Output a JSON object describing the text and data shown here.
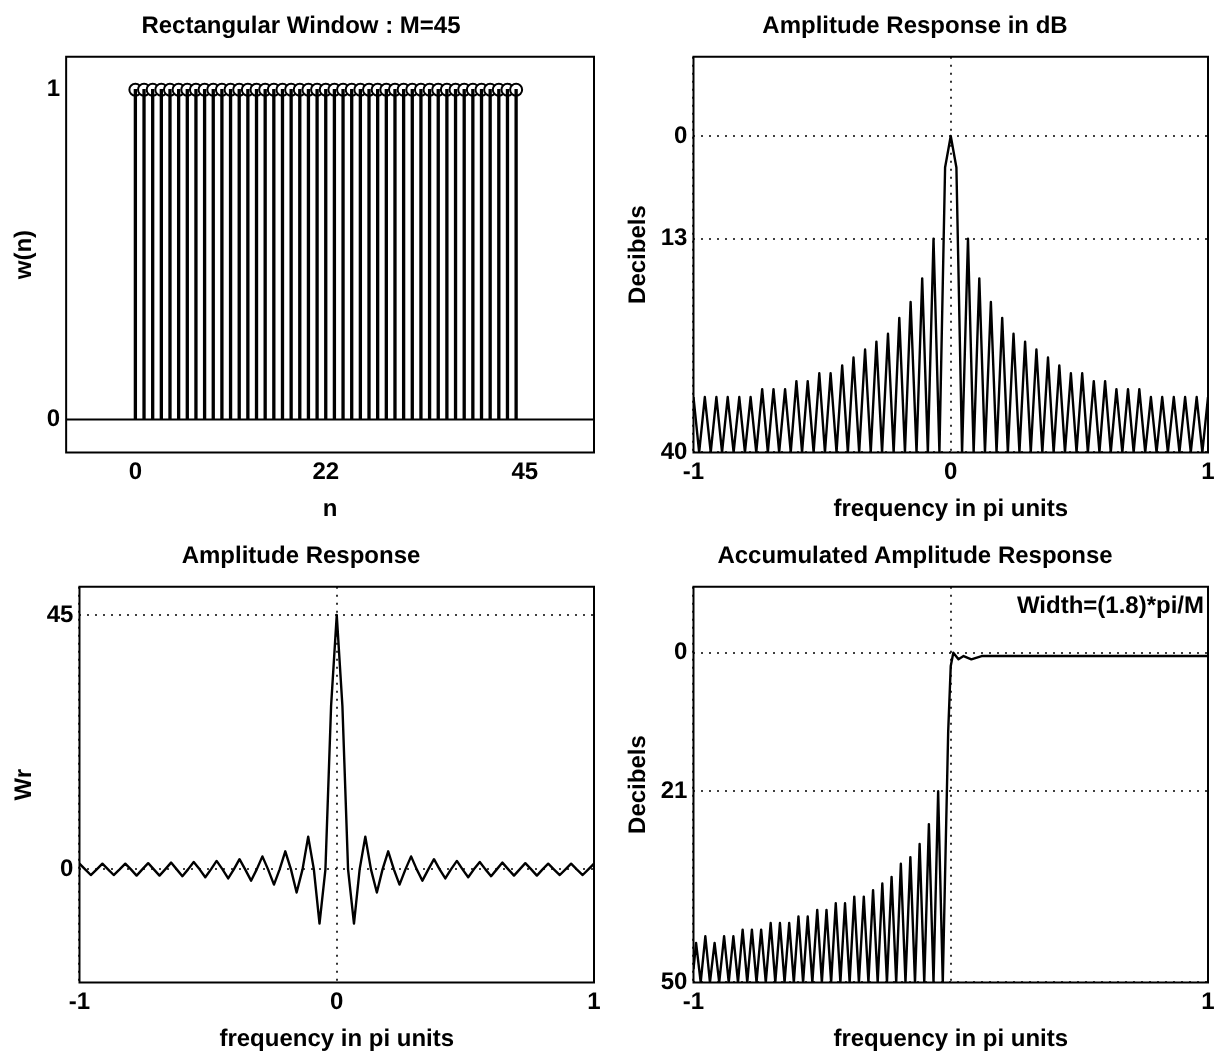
{
  "chart_data": [
    {
      "type": "lollipop",
      "title": "Rectangular Window : M=45",
      "xlabel": "n",
      "ylabel": "w(n)",
      "marker": "circle",
      "x": [
        0,
        1,
        2,
        3,
        4,
        5,
        6,
        7,
        8,
        9,
        10,
        11,
        12,
        13,
        14,
        15,
        16,
        17,
        18,
        19,
        20,
        21,
        22,
        23,
        24,
        25,
        26,
        27,
        28,
        29,
        30,
        31,
        32,
        33,
        34,
        35,
        36,
        37,
        38,
        39,
        40,
        41,
        42,
        43,
        44
      ],
      "series": [
        {
          "color": "#000000",
          "values": [
            1,
            1,
            1,
            1,
            1,
            1,
            1,
            1,
            1,
            1,
            1,
            1,
            1,
            1,
            1,
            1,
            1,
            1,
            1,
            1,
            1,
            1,
            1,
            1,
            1,
            1,
            1,
            1,
            1,
            1,
            1,
            1,
            1,
            1,
            1,
            1,
            1,
            1,
            1,
            1,
            1,
            1,
            1,
            1,
            1
          ]
        }
      ],
      "xlim": [
        -8,
        53
      ],
      "xticks": [
        0,
        22,
        45
      ],
      "ylim": [
        -0.1,
        1.1
      ],
      "yticks": [
        0,
        1
      ],
      "ref_lines": [
        {
          "axis": "y",
          "value": 0,
          "color": "#000000"
        }
      ]
    },
    {
      "type": "line",
      "title": "Amplitude Response in dB",
      "xlabel": "frequency in pi units",
      "ylabel": "Decibels",
      "grid": true,
      "marker": "none",
      "x": [
        -1,
        -0.978,
        -0.956,
        -0.933,
        -0.911,
        -0.889,
        -0.867,
        -0.844,
        -0.822,
        -0.8,
        -0.778,
        -0.756,
        -0.733,
        -0.711,
        -0.689,
        -0.667,
        -0.644,
        -0.622,
        -0.6,
        -0.578,
        -0.556,
        -0.533,
        -0.511,
        -0.489,
        -0.467,
        -0.444,
        -0.422,
        -0.4,
        -0.378,
        -0.356,
        -0.333,
        -0.311,
        -0.289,
        -0.267,
        -0.244,
        -0.222,
        -0.2,
        -0.178,
        -0.156,
        -0.133,
        -0.111,
        -0.089,
        -0.067,
        -0.044,
        -0.022,
        0,
        0.022,
        0.044,
        0.067,
        0.089,
        0.111,
        0.133,
        0.156,
        0.178,
        0.2,
        0.222,
        0.244,
        0.267,
        0.289,
        0.311,
        0.333,
        0.356,
        0.378,
        0.4,
        0.422,
        0.444,
        0.467,
        0.489,
        0.511,
        0.533,
        0.556,
        0.578,
        0.6,
        0.622,
        0.644,
        0.667,
        0.689,
        0.711,
        0.733,
        0.756,
        0.778,
        0.8,
        0.822,
        0.844,
        0.867,
        0.889,
        0.911,
        0.933,
        0.956,
        0.978,
        1
      ],
      "series": [
        {
          "color": "#000000",
          "values": [
            33,
            40,
            33,
            40,
            33,
            40,
            33,
            40,
            33,
            40,
            33,
            40,
            32,
            40,
            32,
            40,
            32,
            40,
            31,
            40,
            31,
            40,
            30,
            40,
            30,
            40,
            29,
            40,
            28,
            40,
            27,
            40,
            26,
            40,
            25,
            40,
            23,
            40,
            21,
            40,
            18,
            40,
            13,
            40,
            4,
            0,
            4,
            40,
            13,
            40,
            18,
            40,
            21,
            40,
            23,
            40,
            25,
            40,
            26,
            40,
            27,
            40,
            28,
            40,
            29,
            40,
            30,
            40,
            30,
            40,
            31,
            40,
            31,
            40,
            32,
            40,
            32,
            40,
            32,
            40,
            33,
            40,
            33,
            40,
            33,
            40,
            33,
            40,
            33,
            40,
            33
          ]
        }
      ],
      "xlim": [
        -1,
        1
      ],
      "xticks": [
        -1,
        0,
        1
      ],
      "ylim": [
        40,
        -10
      ],
      "yticks": [
        0,
        13,
        40
      ]
    },
    {
      "type": "line",
      "title": "Amplitude Response",
      "xlabel": "frequency in pi units",
      "ylabel": "Wr",
      "grid": true,
      "marker": "none",
      "x": [
        -1,
        -0.978,
        -0.956,
        -0.933,
        -0.911,
        -0.889,
        -0.867,
        -0.844,
        -0.822,
        -0.8,
        -0.778,
        -0.756,
        -0.733,
        -0.711,
        -0.689,
        -0.667,
        -0.644,
        -0.622,
        -0.6,
        -0.578,
        -0.556,
        -0.533,
        -0.511,
        -0.489,
        -0.467,
        -0.444,
        -0.422,
        -0.4,
        -0.378,
        -0.356,
        -0.333,
        -0.311,
        -0.289,
        -0.267,
        -0.244,
        -0.222,
        -0.2,
        -0.178,
        -0.156,
        -0.133,
        -0.111,
        -0.089,
        -0.067,
        -0.044,
        -0.022,
        0,
        0.022,
        0.044,
        0.067,
        0.089,
        0.111,
        0.133,
        0.156,
        0.178,
        0.2,
        0.222,
        0.244,
        0.267,
        0.289,
        0.311,
        0.333,
        0.356,
        0.378,
        0.4,
        0.422,
        0.444,
        0.467,
        0.489,
        0.511,
        0.533,
        0.556,
        0.578,
        0.6,
        0.622,
        0.644,
        0.667,
        0.689,
        0.711,
        0.733,
        0.756,
        0.778,
        0.8,
        0.822,
        0.844,
        0.867,
        0.889,
        0.911,
        0.933,
        0.956,
        0.978,
        1
      ],
      "series": [
        {
          "color": "#000000",
          "values": [
            1.0,
            0,
            -1.0,
            0,
            1.0,
            0,
            -1.0,
            0,
            1.0,
            0,
            -1.1,
            0,
            1.1,
            0,
            -1.1,
            0,
            1.2,
            0,
            -1.2,
            0,
            1.3,
            0,
            -1.4,
            0,
            1.5,
            0,
            -1.6,
            0,
            1.8,
            0,
            -2.0,
            0,
            2.3,
            0,
            -2.7,
            0,
            3.2,
            0,
            -4.1,
            0,
            5.8,
            0,
            -9.6,
            0,
            28.9,
            45,
            28.9,
            0,
            -9.6,
            0,
            5.8,
            0,
            -4.1,
            0,
            3.2,
            0,
            -2.7,
            0,
            2.3,
            0,
            -2.0,
            0,
            1.8,
            0,
            -1.6,
            0,
            1.5,
            0,
            -1.4,
            0,
            1.3,
            0,
            -1.2,
            0,
            1.2,
            0,
            -1.1,
            0,
            1.1,
            0,
            -1.1,
            0,
            1.0,
            0,
            -1.0,
            0,
            1.0,
            0,
            -1.0,
            0,
            1.0
          ]
        }
      ],
      "xlim": [
        -1,
        1
      ],
      "xticks": [
        -1,
        0,
        1
      ],
      "ylim": [
        -20,
        50
      ],
      "yticks": [
        0,
        45
      ]
    },
    {
      "type": "line",
      "title": "Accumulated Amplitude Response",
      "xlabel": "frequency in pi units",
      "ylabel": "Decibels",
      "grid": true,
      "marker": "none",
      "annotations": [
        "Width=(1.8)*pi/M"
      ],
      "x": [
        -1,
        -0.99,
        -0.972,
        -0.954,
        -0.936,
        -0.918,
        -0.9,
        -0.881,
        -0.863,
        -0.845,
        -0.827,
        -0.809,
        -0.791,
        -0.773,
        -0.755,
        -0.737,
        -0.719,
        -0.7,
        -0.682,
        -0.664,
        -0.646,
        -0.628,
        -0.61,
        -0.592,
        -0.574,
        -0.556,
        -0.538,
        -0.519,
        -0.501,
        -0.483,
        -0.465,
        -0.447,
        -0.429,
        -0.411,
        -0.393,
        -0.375,
        -0.357,
        -0.338,
        -0.32,
        -0.302,
        -0.284,
        -0.266,
        -0.248,
        -0.23,
        -0.212,
        -0.194,
        -0.176,
        -0.157,
        -0.139,
        -0.121,
        -0.103,
        -0.085,
        -0.067,
        -0.049,
        -0.031,
        -0.02,
        -0.01,
        0,
        0.01,
        0.03,
        0.05,
        0.08,
        0.12,
        1
      ],
      "series": [
        {
          "color": "#000000",
          "values": [
            48,
            44,
            50,
            43,
            50,
            44,
            50,
            43,
            50,
            43,
            50,
            42,
            50,
            42,
            50,
            42,
            50,
            41,
            50,
            41,
            50,
            41,
            50,
            40,
            50,
            40,
            50,
            39,
            50,
            39,
            50,
            38,
            50,
            38,
            50,
            37,
            50,
            37,
            50,
            36,
            50,
            35,
            50,
            34,
            50,
            32,
            50,
            31,
            50,
            29,
            50,
            26,
            50,
            21,
            50,
            30,
            12,
            2,
            0,
            1,
            0.5,
            1,
            0.5,
            0.5
          ]
        }
      ],
      "xlim": [
        -1,
        1
      ],
      "xticks": [
        -1,
        {
          "value": 0,
          "label": null
        },
        1
      ],
      "ylim": [
        50,
        -10
      ],
      "yticks": [
        0,
        21,
        50
      ]
    }
  ]
}
